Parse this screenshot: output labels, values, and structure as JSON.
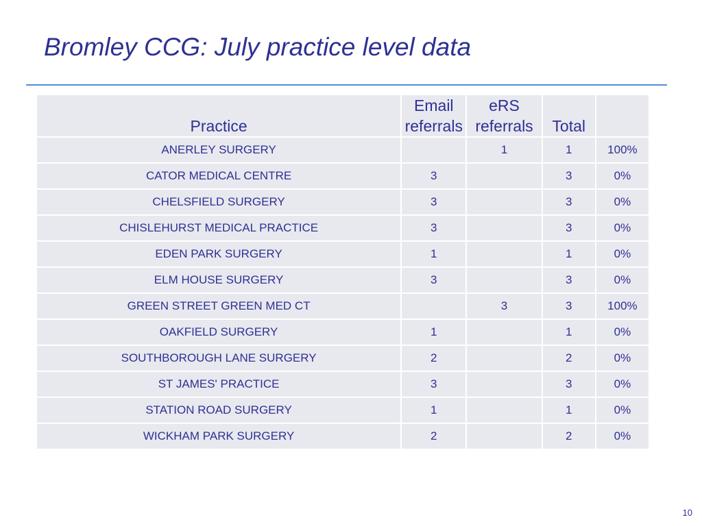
{
  "slide": {
    "title": "Bromley CCG: July practice level data",
    "page_number": "10"
  },
  "table": {
    "headers": {
      "practice": "Practice",
      "email_line1": "Email",
      "email_line2": "referrals",
      "ers_line1": "eRS",
      "ers_line2": "referrals",
      "total": "Total",
      "pct": ""
    },
    "rows": [
      {
        "practice": "ANERLEY SURGERY",
        "email": "",
        "ers": "1",
        "total": "1",
        "pct": "100%"
      },
      {
        "practice": "CATOR MEDICAL CENTRE",
        "email": "3",
        "ers": "",
        "total": "3",
        "pct": "0%"
      },
      {
        "practice": "CHELSFIELD SURGERY",
        "email": "3",
        "ers": "",
        "total": "3",
        "pct": "0%"
      },
      {
        "practice": "CHISLEHURST MEDICAL PRACTICE",
        "email": "3",
        "ers": "",
        "total": "3",
        "pct": "0%"
      },
      {
        "practice": "EDEN PARK SURGERY",
        "email": "1",
        "ers": "",
        "total": "1",
        "pct": "0%"
      },
      {
        "practice": "ELM HOUSE SURGERY",
        "email": "3",
        "ers": "",
        "total": "3",
        "pct": "0%"
      },
      {
        "practice": "GREEN STREET GREEN MED CT",
        "email": "",
        "ers": "3",
        "total": "3",
        "pct": "100%"
      },
      {
        "practice": "OAKFIELD SURGERY",
        "email": "1",
        "ers": "",
        "total": "1",
        "pct": "0%"
      },
      {
        "practice": "SOUTHBOROUGH LANE SURGERY",
        "email": "2",
        "ers": "",
        "total": "2",
        "pct": "0%"
      },
      {
        "practice": "ST JAMES' PRACTICE",
        "email": "3",
        "ers": "",
        "total": "3",
        "pct": "0%"
      },
      {
        "practice": "STATION ROAD SURGERY",
        "email": "1",
        "ers": "",
        "total": "1",
        "pct": "0%"
      },
      {
        "practice": "WICKHAM PARK SURGERY",
        "email": "2",
        "ers": "",
        "total": "2",
        "pct": "0%"
      }
    ]
  },
  "colors": {
    "title": "#2E3192",
    "rule": "#4F8FD6",
    "cell_background": "#E8E8EF"
  }
}
